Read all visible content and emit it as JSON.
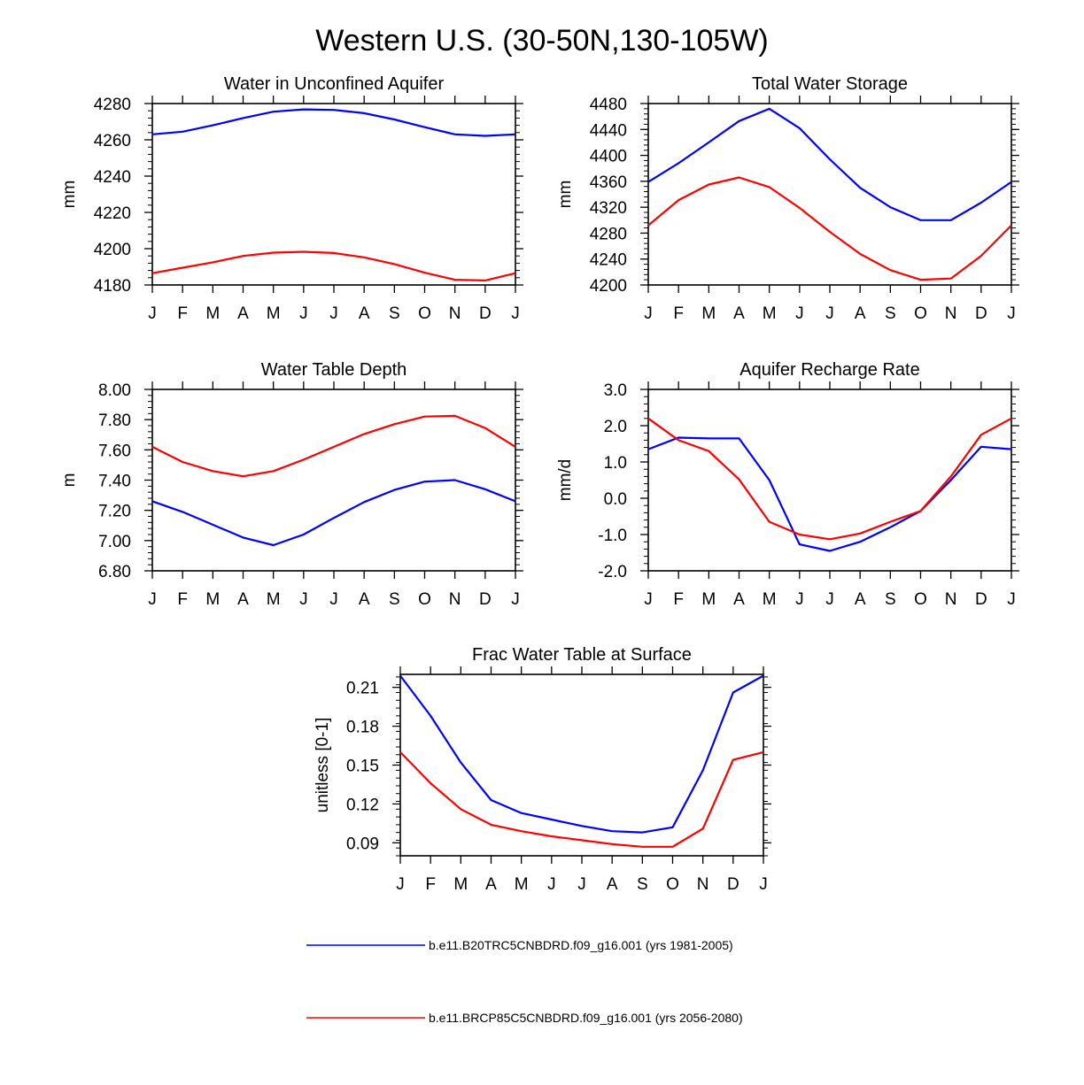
{
  "title": "Western U.S. (30-50N,130-105W)",
  "colors": {
    "series1": "#0000ff",
    "series2": "#ff0000"
  },
  "legend": [
    {
      "label": "b.e11.B20TRC5CNBDRD.f09_g16.001 (yrs 1981-2005)",
      "color": "#0000ff"
    },
    {
      "label": "b.e11.BRCP85C5CNBDRD.f09_g16.001 (yrs 2056-2080)",
      "color": "#ff0000"
    }
  ],
  "chart_data": [
    {
      "type": "line",
      "title": "Water in Unconfined Aquifer",
      "ylabel": "mm",
      "categories": [
        "J",
        "F",
        "M",
        "A",
        "M",
        "J",
        "J",
        "A",
        "S",
        "O",
        "N",
        "D",
        "J"
      ],
      "ylim": [
        4180,
        4280
      ],
      "yticks": [
        "4180",
        "4200",
        "4220",
        "4240",
        "4260",
        "4280"
      ],
      "series": [
        {
          "name": "b.e11.B20TRC5CNBDRD.f09_g16.001 (yrs 1981-2005)",
          "color": "#0000ff",
          "values": [
            4263,
            4264.5,
            4268,
            4272,
            4275.5,
            4276.8,
            4276.5,
            4274.7,
            4271.2,
            4267,
            4263,
            4262.2,
            4263
          ]
        },
        {
          "name": "b.e11.BRCP85C5CNBDRD.f09_g16.001 (yrs 2056-2080)",
          "color": "#ff0000",
          "values": [
            4186.5,
            4189.5,
            4192.5,
            4196,
            4197.8,
            4198.3,
            4197.6,
            4195.2,
            4191.5,
            4186.8,
            4182.9,
            4182.5,
            4186.5
          ]
        }
      ]
    },
    {
      "type": "line",
      "title": "Total Water Storage",
      "ylabel": "mm",
      "categories": [
        "J",
        "F",
        "M",
        "A",
        "M",
        "J",
        "J",
        "A",
        "S",
        "O",
        "N",
        "D",
        "J"
      ],
      "ylim": [
        4200,
        4480
      ],
      "yticks": [
        "4200",
        "4240",
        "4280",
        "4320",
        "4360",
        "4400",
        "4440",
        "4480"
      ],
      "series": [
        {
          "name": "b.e11.B20TRC5CNBDRD.f09_g16.001 (yrs 1981-2005)",
          "color": "#0000ff",
          "values": [
            4359,
            4388,
            4420,
            4453,
            4472,
            4442,
            4394,
            4350,
            4320,
            4300,
            4300,
            4327,
            4359
          ]
        },
        {
          "name": "b.e11.BRCP85C5CNBDRD.f09_g16.001 (yrs 2056-2080)",
          "color": "#ff0000",
          "values": [
            4292,
            4331,
            4355,
            4366,
            4351,
            4319,
            4282,
            4248,
            4223,
            4208,
            4210,
            4245,
            4292
          ]
        }
      ]
    },
    {
      "type": "line",
      "title": "Water Table Depth",
      "ylabel": "m",
      "categories": [
        "J",
        "F",
        "M",
        "A",
        "M",
        "J",
        "J",
        "A",
        "S",
        "O",
        "N",
        "D",
        "J"
      ],
      "ylim": [
        6.8,
        8.0
      ],
      "yticks": [
        "6.80",
        "7.00",
        "7.20",
        "7.40",
        "7.60",
        "7.80",
        "8.00"
      ],
      "series": [
        {
          "name": "b.e11.B20TRC5CNBDRD.f09_g16.001 (yrs 1981-2005)",
          "color": "#0000ff",
          "values": [
            7.26,
            7.19,
            7.105,
            7.02,
            6.97,
            7.04,
            7.15,
            7.255,
            7.335,
            7.39,
            7.4,
            7.34,
            7.26
          ]
        },
        {
          "name": "b.e11.BRCP85C5CNBDRD.f09_g16.001 (yrs 2056-2080)",
          "color": "#ff0000",
          "values": [
            7.62,
            7.52,
            7.46,
            7.425,
            7.46,
            7.535,
            7.62,
            7.705,
            7.77,
            7.82,
            7.825,
            7.745,
            7.62
          ]
        }
      ]
    },
    {
      "type": "line",
      "title": "Aquifer Recharge Rate",
      "ylabel": "mm/d",
      "categories": [
        "J",
        "F",
        "M",
        "A",
        "M",
        "J",
        "J",
        "A",
        "S",
        "O",
        "N",
        "D",
        "J"
      ],
      "ylim": [
        -2.0,
        3.0
      ],
      "yticks": [
        "-2.0",
        "-1.0",
        "0.0",
        "1.0",
        "2.0",
        "3.0"
      ],
      "series": [
        {
          "name": "b.e11.B20TRC5CNBDRD.f09_g16.001 (yrs 1981-2005)",
          "color": "#0000ff",
          "values": [
            1.35,
            1.67,
            1.65,
            1.65,
            0.5,
            -1.27,
            -1.45,
            -1.2,
            -0.8,
            -0.35,
            0.5,
            1.42,
            1.35
          ]
        },
        {
          "name": "b.e11.BRCP85C5CNBDRD.f09_g16.001 (yrs 2056-2080)",
          "color": "#ff0000",
          "values": [
            2.2,
            1.6,
            1.3,
            0.52,
            -0.65,
            -1.0,
            -1.13,
            -0.97,
            -0.65,
            -0.35,
            0.6,
            1.75,
            2.2
          ]
        }
      ]
    },
    {
      "type": "line",
      "title": "Frac Water Table at Surface",
      "ylabel": "unitless [0-1]",
      "categories": [
        "J",
        "F",
        "M",
        "A",
        "M",
        "J",
        "J",
        "A",
        "S",
        "O",
        "N",
        "D",
        "J"
      ],
      "ylim": [
        0.08,
        0.22
      ],
      "yticks": [
        "0.09",
        "0.12",
        "0.15",
        "0.18",
        "0.21"
      ],
      "series": [
        {
          "name": "b.e11.B20TRC5CNBDRD.f09_g16.001 (yrs 1981-2005)",
          "color": "#0000ff",
          "values": [
            0.219,
            0.188,
            0.152,
            0.123,
            0.113,
            0.108,
            0.103,
            0.099,
            0.098,
            0.102,
            0.146,
            0.206,
            0.219
          ]
        },
        {
          "name": "b.e11.BRCP85C5CNBDRD.f09_g16.001 (yrs 2056-2080)",
          "color": "#ff0000",
          "values": [
            0.16,
            0.136,
            0.116,
            0.104,
            0.099,
            0.095,
            0.092,
            0.089,
            0.087,
            0.087,
            0.101,
            0.154,
            0.16
          ]
        }
      ]
    }
  ]
}
